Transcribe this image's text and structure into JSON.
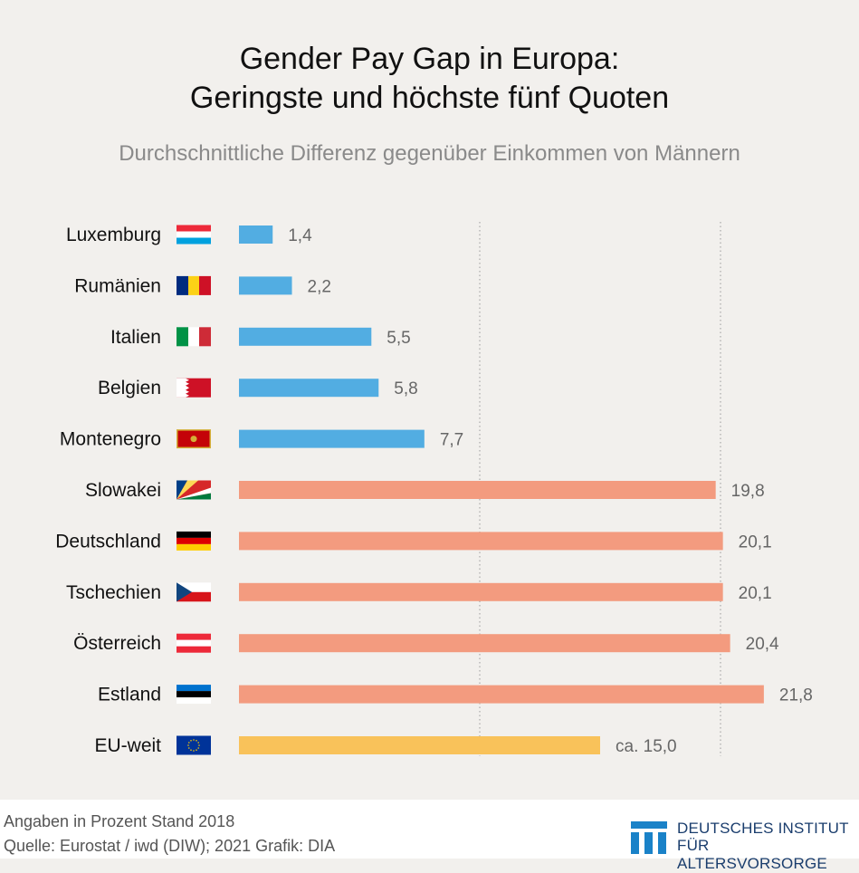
{
  "title_line1": "Gender Pay Gap in Europa:",
  "title_line2": "Geringste und höchste fünf Quoten",
  "subtitle": "Durchschnittliche Differenz gegenüber Einkommen von Männern",
  "colors": {
    "lowest": "#52ade2",
    "highest": "#f39b7f",
    "eu": "#f9c25a",
    "background": "#f2f0ed",
    "logo": "#1a82c8"
  },
  "chart_data": {
    "type": "bar",
    "orientation": "horizontal",
    "categories": [
      "Luxemburg",
      "Rumänien",
      "Italien",
      "Belgien",
      "Montenegro",
      "Slowakei",
      "Deutschland",
      "Tschechien",
      "Österreich",
      "Estland",
      "EU-weit"
    ],
    "values": [
      1.4,
      2.2,
      5.5,
      5.8,
      7.7,
      19.8,
      20.1,
      20.1,
      20.4,
      21.8,
      15.0
    ],
    "labels": [
      "1,4",
      "2,2",
      "5,5",
      "5,8",
      "7,7",
      "19,8",
      "20,1",
      "20,1",
      "20,4",
      "21,8",
      "ca. 15,0"
    ],
    "groups": [
      "lowest",
      "lowest",
      "lowest",
      "lowest",
      "lowest",
      "highest",
      "highest",
      "highest",
      "highest",
      "highest",
      "eu"
    ],
    "flags": [
      "luxembourg-flag",
      "romania-flag",
      "italy-flag",
      "bahrain-flag",
      "montenegro-flag",
      "seychelles-flag",
      "germany-flag",
      "czech-flag",
      "austria-flag",
      "estonia-flag",
      "eu-flag"
    ],
    "xlim": [
      0,
      22
    ],
    "gridlines": [
      10,
      20
    ],
    "grid": "dotted vertical",
    "legend": "none"
  },
  "footer": {
    "line1": "Angaben in Prozent  Stand 2018",
    "line2": "Quelle: Eurostat / iwd (DIW); 2021  Grafik: DIA"
  },
  "logo": {
    "line1": "DEUTSCHES INSTITUT",
    "line2": "FÜR ALTERSVORSORGE"
  }
}
